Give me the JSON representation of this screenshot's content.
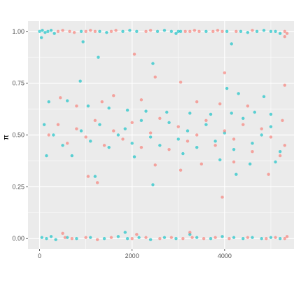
{
  "chart_data": {
    "type": "scatter",
    "xlabel": "",
    "ylabel": "π",
    "xlim": [
      -250,
      5500
    ],
    "ylim": [
      -0.05,
      1.05
    ],
    "x_ticks": [
      0,
      2000,
      4000
    ],
    "x_tick_labels": [
      "0",
      "2000",
      "4000"
    ],
    "y_ticks": [
      0.0,
      0.25,
      0.5,
      0.75,
      1.0
    ],
    "y_tick_labels": [
      "0.00",
      "0.25",
      "0.50",
      "0.75",
      "1.00"
    ],
    "grid": true,
    "legend": "none",
    "colors": {
      "panel": "#ebebeb",
      "grid": "#ffffff",
      "series_a": "#f8766d",
      "series_b": "#00bfc4"
    },
    "series": [
      {
        "color": "#00bfc4",
        "points": [
          [
            0,
            1.0
          ],
          [
            60,
            1.005
          ],
          [
            120,
            0.995
          ],
          [
            180,
            1.0
          ],
          [
            250,
            1.005
          ],
          [
            320,
            0.99
          ],
          [
            40,
            0.97
          ],
          [
            900,
            1.0
          ],
          [
            1300,
            1.0
          ],
          [
            1450,
            0.995
          ],
          [
            1800,
            1.0
          ],
          [
            1950,
            1.005
          ],
          [
            2100,
            1.0
          ],
          [
            2550,
            1.0
          ],
          [
            2700,
            1.005
          ],
          [
            2850,
            1.0
          ],
          [
            2950,
            0.99
          ],
          [
            3000,
            1.0
          ],
          [
            3050,
            1.0
          ],
          [
            3600,
            1.0
          ],
          [
            4050,
            1.0
          ],
          [
            4350,
            1.0
          ],
          [
            4500,
            0.995
          ],
          [
            4700,
            1.0
          ],
          [
            4850,
            1.005
          ],
          [
            5000,
            1.0
          ],
          [
            5100,
            1.0
          ],
          [
            5200,
            0.99
          ],
          [
            4150,
            0.94
          ],
          [
            940,
            0.95
          ],
          [
            1270,
            0.875
          ],
          [
            2450,
            0.845
          ],
          [
            880,
            0.76
          ],
          [
            4050,
            0.725
          ],
          [
            4300,
            0.7
          ],
          [
            4850,
            0.685
          ],
          [
            200,
            0.66
          ],
          [
            600,
            0.665
          ],
          [
            1050,
            0.64
          ],
          [
            1500,
            0.63
          ],
          [
            1900,
            0.62
          ],
          [
            2300,
            0.615
          ],
          [
            2750,
            0.61
          ],
          [
            3250,
            0.605
          ],
          [
            3700,
            0.6
          ],
          [
            4150,
            0.605
          ],
          [
            4650,
            0.61
          ],
          [
            5000,
            0.6
          ],
          [
            100,
            0.55
          ],
          [
            300,
            0.5
          ],
          [
            500,
            0.45
          ],
          [
            700,
            0.4
          ],
          [
            900,
            0.52
          ],
          [
            1100,
            0.47
          ],
          [
            1300,
            0.55
          ],
          [
            1500,
            0.44
          ],
          [
            1700,
            0.5
          ],
          [
            1850,
            0.53
          ],
          [
            2000,
            0.46
          ],
          [
            2200,
            0.57
          ],
          [
            2400,
            0.49
          ],
          [
            2600,
            0.45
          ],
          [
            2800,
            0.56
          ],
          [
            3000,
            0.48
          ],
          [
            3200,
            0.52
          ],
          [
            3400,
            0.44
          ],
          [
            3600,
            0.55
          ],
          [
            3800,
            0.47
          ],
          [
            4000,
            0.51
          ],
          [
            4200,
            0.43
          ],
          [
            4400,
            0.58
          ],
          [
            4600,
            0.46
          ],
          [
            4800,
            0.5
          ],
          [
            5000,
            0.54
          ],
          [
            5200,
            0.42
          ],
          [
            150,
            0.4
          ],
          [
            1200,
            0.3
          ],
          [
            2450,
            0.26
          ],
          [
            2050,
            0.395
          ],
          [
            3100,
            0.41
          ],
          [
            3900,
            0.38
          ],
          [
            4250,
            0.31
          ],
          [
            4550,
            0.36
          ],
          [
            5100,
            0.37
          ],
          [
            50,
            0.005
          ],
          [
            150,
            0.0
          ],
          [
            250,
            0.01
          ],
          [
            350,
            -0.005
          ],
          [
            600,
            0.005
          ],
          [
            800,
            0.0
          ],
          [
            1100,
            0.005
          ],
          [
            1400,
            0.0
          ],
          [
            1700,
            0.01
          ],
          [
            1900,
            0.0
          ],
          [
            2150,
            0.005
          ],
          [
            2400,
            -0.005
          ],
          [
            2700,
            0.005
          ],
          [
            2950,
            0.0
          ],
          [
            3400,
            0.005
          ],
          [
            3700,
            0.0
          ],
          [
            3950,
            0.01
          ],
          [
            4200,
            0.005
          ],
          [
            4400,
            0.0
          ],
          [
            4600,
            0.005
          ],
          [
            4800,
            0.0
          ],
          [
            5000,
            0.005
          ],
          [
            5200,
            0.0
          ],
          [
            1850,
            0.03
          ],
          [
            3250,
            0.02
          ]
        ]
      },
      {
        "color": "#f8766d",
        "points": [
          [
            400,
            1.0
          ],
          [
            500,
            1.005
          ],
          [
            650,
            1.0
          ],
          [
            750,
            0.995
          ],
          [
            1000,
            1.0
          ],
          [
            1100,
            1.005
          ],
          [
            1200,
            1.0
          ],
          [
            1550,
            1.0
          ],
          [
            1650,
            1.005
          ],
          [
            2300,
            1.0
          ],
          [
            2400,
            1.005
          ],
          [
            3150,
            1.0
          ],
          [
            3250,
            1.0
          ],
          [
            3350,
            1.005
          ],
          [
            3450,
            1.0
          ],
          [
            3750,
            1.0
          ],
          [
            3850,
            1.005
          ],
          [
            3950,
            1.0
          ],
          [
            4250,
            1.0
          ],
          [
            4600,
            1.005
          ],
          [
            5300,
            1.0
          ],
          [
            5350,
            0.99
          ],
          [
            5300,
            0.975
          ],
          [
            2050,
            0.89
          ],
          [
            3050,
            0.755
          ],
          [
            4000,
            0.8
          ],
          [
            2500,
            0.78
          ],
          [
            5300,
            0.74
          ],
          [
            450,
            0.68
          ],
          [
            1600,
            0.69
          ],
          [
            800,
            0.64
          ],
          [
            1350,
            0.66
          ],
          [
            2200,
            0.67
          ],
          [
            3400,
            0.66
          ],
          [
            3900,
            0.65
          ],
          [
            4500,
            0.64
          ],
          [
            200,
            0.5
          ],
          [
            400,
            0.55
          ],
          [
            600,
            0.46
          ],
          [
            800,
            0.53
          ],
          [
            1000,
            0.49
          ],
          [
            1200,
            0.57
          ],
          [
            1400,
            0.45
          ],
          [
            1600,
            0.52
          ],
          [
            1800,
            0.48
          ],
          [
            2000,
            0.56
          ],
          [
            2200,
            0.44
          ],
          [
            2400,
            0.51
          ],
          [
            2600,
            0.58
          ],
          [
            2800,
            0.43
          ],
          [
            3000,
            0.54
          ],
          [
            3200,
            0.47
          ],
          [
            3400,
            0.5
          ],
          [
            3600,
            0.57
          ],
          [
            3800,
            0.45
          ],
          [
            4000,
            0.52
          ],
          [
            4200,
            0.48
          ],
          [
            4400,
            0.55
          ],
          [
            4600,
            0.42
          ],
          [
            4800,
            0.53
          ],
          [
            5000,
            0.49
          ],
          [
            5250,
            0.57
          ],
          [
            5300,
            0.45
          ],
          [
            5200,
            0.4
          ],
          [
            1050,
            0.3
          ],
          [
            1250,
            0.27
          ],
          [
            2500,
            0.355
          ],
          [
            3050,
            0.33
          ],
          [
            3500,
            0.36
          ],
          [
            4200,
            0.37
          ],
          [
            4950,
            0.31
          ],
          [
            3950,
            0.2
          ],
          [
            550,
            0.005
          ],
          [
            700,
            0.0
          ],
          [
            1000,
            0.005
          ],
          [
            1250,
            -0.005
          ],
          [
            1550,
            0.005
          ],
          [
            2000,
            0.0
          ],
          [
            2300,
            0.005
          ],
          [
            2600,
            0.0
          ],
          [
            2850,
            0.005
          ],
          [
            3100,
            0.0
          ],
          [
            3250,
            0.03
          ],
          [
            3300,
            0.005
          ],
          [
            3550,
            0.0
          ],
          [
            3800,
            0.005
          ],
          [
            4100,
            0.0
          ],
          [
            4500,
            0.005
          ],
          [
            4900,
            0.0
          ],
          [
            5100,
            0.005
          ],
          [
            5300,
            0.0
          ],
          [
            5350,
            0.01
          ],
          [
            500,
            0.025
          ],
          [
            2100,
            0.02
          ]
        ]
      }
    ]
  }
}
